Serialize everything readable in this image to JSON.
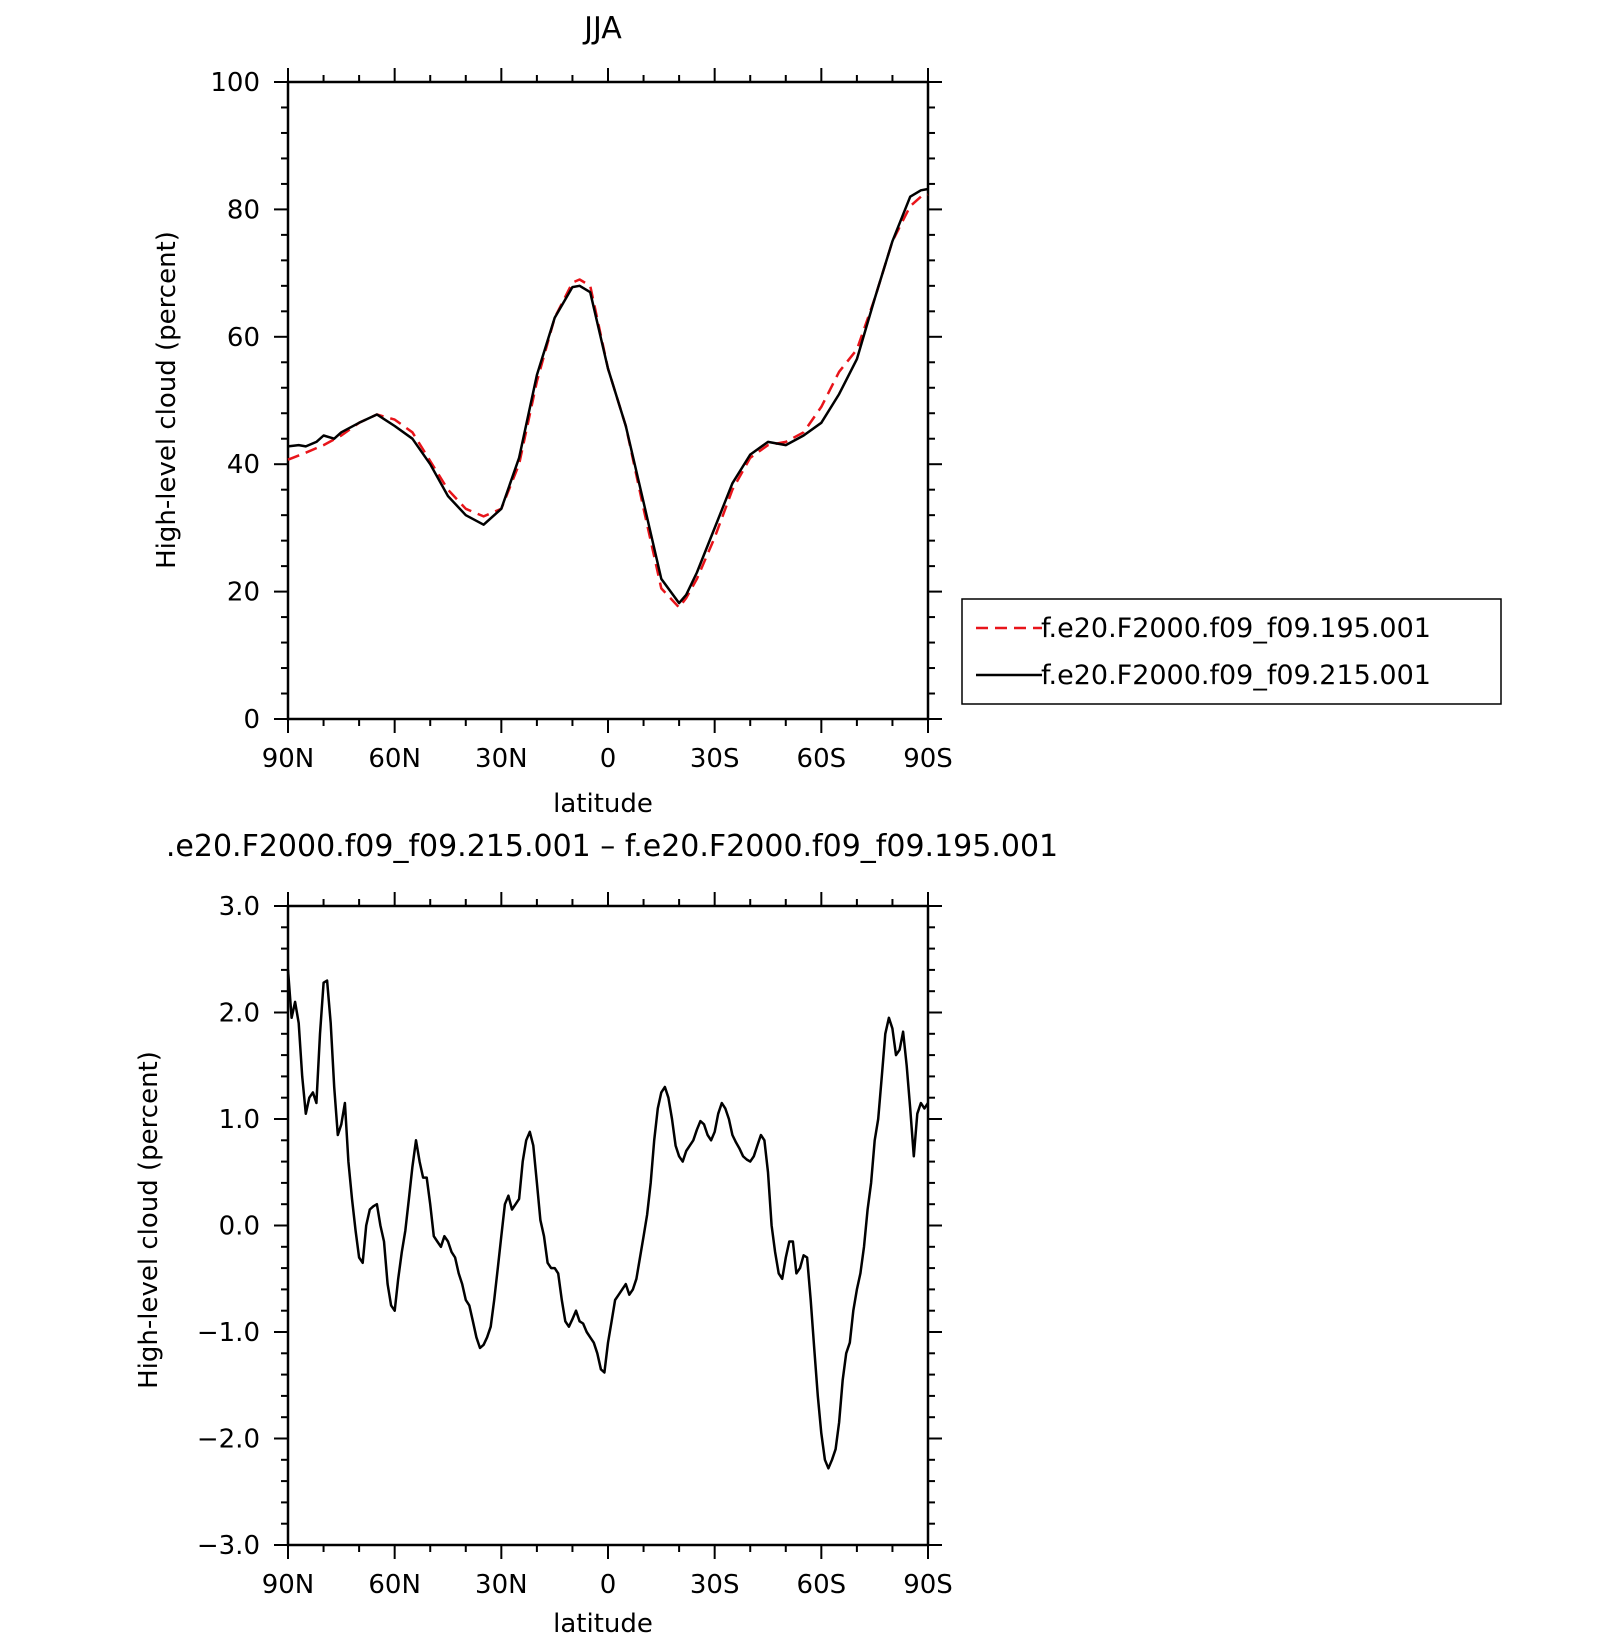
{
  "chart_data": [
    {
      "type": "line",
      "title": "JJA",
      "xlabel": "latitude",
      "ylabel": "High-level cloud (percent)",
      "xlim": [
        -90,
        90
      ],
      "ylim": [
        0,
        100
      ],
      "x_ticks": [
        -90,
        -60,
        -30,
        0,
        30,
        60,
        90
      ],
      "x_tick_labels": [
        "90N",
        "60N",
        "30N",
        "0",
        "30S",
        "60S",
        "90S"
      ],
      "y_ticks": [
        0,
        20,
        40,
        60,
        80,
        100
      ],
      "y_tick_labels": [
        "0",
        "20",
        "40",
        "60",
        "80",
        "100"
      ],
      "legend_position": "right, outside plot",
      "series": [
        {
          "name": "f.e20.F2000.f09_f09.195.001",
          "color": "#e8141a",
          "dash": "dashed",
          "x": [
            -90,
            -85,
            -80,
            -75,
            -70,
            -65,
            -60,
            -55,
            -50,
            -45,
            -40,
            -35,
            -30,
            -25,
            -20,
            -15,
            -10,
            -8,
            -5,
            0,
            5,
            10,
            15,
            20,
            22,
            25,
            30,
            35,
            40,
            45,
            50,
            55,
            60,
            65,
            70,
            75,
            80,
            85,
            88,
            90
          ],
          "y": [
            40.7,
            41.8,
            43.0,
            44.5,
            46.5,
            47.8,
            47.0,
            45.0,
            40.5,
            36.0,
            33.0,
            31.8,
            33.0,
            40.0,
            53.0,
            63.0,
            68.5,
            69.0,
            68.0,
            55.0,
            46.0,
            33.0,
            20.5,
            17.5,
            19.0,
            22.0,
            28.5,
            36.0,
            41.0,
            43.0,
            43.5,
            45.0,
            49.0,
            54.5,
            58.0,
            66.0,
            75.0,
            80.5,
            82.0,
            82.3
          ]
        },
        {
          "name": "f.e20.F2000.f09_f09.215.001",
          "color": "#000000",
          "dash": "solid",
          "x": [
            -90,
            -87,
            -85,
            -82,
            -80,
            -77,
            -75,
            -70,
            -65,
            -60,
            -55,
            -50,
            -45,
            -40,
            -35,
            -30,
            -25,
            -20,
            -15,
            -10,
            -8,
            -5,
            0,
            5,
            10,
            15,
            20,
            22,
            25,
            30,
            35,
            40,
            45,
            50,
            55,
            60,
            65,
            70,
            75,
            80,
            85,
            88,
            90
          ],
          "y": [
            42.8,
            43.0,
            42.8,
            43.5,
            44.5,
            44.0,
            45.0,
            46.5,
            47.8,
            46.0,
            44.0,
            40.0,
            35.0,
            32.0,
            30.5,
            33.0,
            41.0,
            54.0,
            63.0,
            67.8,
            68.0,
            67.0,
            55.0,
            46.0,
            34.0,
            22.0,
            18.2,
            19.5,
            23.0,
            30.0,
            37.0,
            41.5,
            43.5,
            43.0,
            44.5,
            46.5,
            51.0,
            56.5,
            66.0,
            75.0,
            82.0,
            83.0,
            83.2
          ]
        }
      ]
    },
    {
      "type": "line",
      "title": ".e20.F2000.f09_f09.215.001 – f.e20.F2000.f09_f09.195.001",
      "xlabel": "latitude",
      "ylabel": "High-level cloud (percent)",
      "xlim": [
        -90,
        90
      ],
      "ylim": [
        -3.0,
        3.0
      ],
      "x_ticks": [
        -90,
        -60,
        -30,
        0,
        30,
        60,
        90
      ],
      "x_tick_labels": [
        "90N",
        "60N",
        "30N",
        "0",
        "30S",
        "60S",
        "90S"
      ],
      "y_ticks": [
        -3.0,
        -2.0,
        -1.0,
        0.0,
        1.0,
        2.0,
        3.0
      ],
      "y_tick_labels": [
        "−3.0",
        "−2.0",
        "−1.0",
        "0.0",
        "1.0",
        "2.0",
        "3.0"
      ],
      "series": [
        {
          "color": "#000000",
          "dash": "solid",
          "x": [
            -90,
            -89,
            -88,
            -87,
            -86,
            -85,
            -84,
            -83,
            -82,
            -81,
            -80,
            -79,
            -78,
            -77,
            -76,
            -75,
            -74,
            -73,
            -72,
            -71,
            -70,
            -69,
            -68,
            -67,
            -66,
            -65,
            -64,
            -63,
            -62,
            -61,
            -60,
            -59,
            -58,
            -57,
            -56,
            -55,
            -54,
            -53,
            -52,
            -51,
            -50,
            -49,
            -48,
            -47,
            -46,
            -45,
            -44,
            -43,
            -42,
            -41,
            -40,
            -39,
            -38,
            -37,
            -36,
            -35,
            -34,
            -33,
            -32,
            -31,
            -30,
            -29,
            -28,
            -27,
            -26,
            -25,
            -24,
            -23,
            -22,
            -21,
            -20,
            -19,
            -18,
            -17,
            -16,
            -15,
            -14,
            -13,
            -12,
            -11,
            -10,
            -9,
            -8,
            -7,
            -6,
            -5,
            -4,
            -3,
            -2,
            -1,
            0,
            1,
            2,
            3,
            4,
            5,
            6,
            7,
            8,
            9,
            10,
            11,
            12,
            13,
            14,
            15,
            16,
            17,
            18,
            19,
            20,
            21,
            22,
            23,
            24,
            25,
            26,
            27,
            28,
            29,
            30,
            31,
            32,
            33,
            34,
            35,
            36,
            37,
            38,
            39,
            40,
            41,
            42,
            43,
            44,
            45,
            46,
            47,
            48,
            49,
            50,
            51,
            52,
            53,
            54,
            55,
            56,
            57,
            58,
            59,
            60,
            61,
            62,
            63,
            64,
            65,
            66,
            67,
            68,
            69,
            70,
            71,
            72,
            73,
            74,
            75,
            76,
            77,
            78,
            79,
            80,
            81,
            82,
            83,
            84,
            85,
            86,
            87,
            88,
            89,
            90
          ],
          "y": [
            2.4,
            1.95,
            2.1,
            1.9,
            1.4,
            1.05,
            1.2,
            1.25,
            1.15,
            1.8,
            2.28,
            2.3,
            1.9,
            1.3,
            0.85,
            0.95,
            1.15,
            0.6,
            0.25,
            -0.05,
            -0.3,
            -0.35,
            0.0,
            0.15,
            0.18,
            0.2,
            0.0,
            -0.15,
            -0.55,
            -0.75,
            -0.8,
            -0.5,
            -0.25,
            -0.05,
            0.25,
            0.55,
            0.8,
            0.6,
            0.45,
            0.45,
            0.2,
            -0.1,
            -0.15,
            -0.2,
            -0.1,
            -0.15,
            -0.25,
            -0.3,
            -0.45,
            -0.55,
            -0.7,
            -0.75,
            -0.9,
            -1.05,
            -1.15,
            -1.12,
            -1.05,
            -0.95,
            -0.7,
            -0.4,
            -0.1,
            0.2,
            0.28,
            0.15,
            0.2,
            0.25,
            0.6,
            0.8,
            0.88,
            0.75,
            0.4,
            0.05,
            -0.1,
            -0.35,
            -0.4,
            -0.4,
            -0.45,
            -0.7,
            -0.9,
            -0.95,
            -0.88,
            -0.8,
            -0.9,
            -0.92,
            -1.0,
            -1.05,
            -1.1,
            -1.2,
            -1.35,
            -1.38,
            -1.1,
            -0.9,
            -0.7,
            -0.65,
            -0.6,
            -0.55,
            -0.65,
            -0.6,
            -0.5,
            -0.3,
            -0.1,
            0.1,
            0.4,
            0.8,
            1.1,
            1.25,
            1.3,
            1.2,
            1.0,
            0.75,
            0.65,
            0.6,
            0.7,
            0.75,
            0.8,
            0.9,
            0.98,
            0.95,
            0.85,
            0.8,
            0.88,
            1.05,
            1.15,
            1.1,
            1.0,
            0.85,
            0.78,
            0.72,
            0.65,
            0.62,
            0.6,
            0.65,
            0.75,
            0.85,
            0.8,
            0.5,
            0.0,
            -0.25,
            -0.45,
            -0.5,
            -0.3,
            -0.15,
            -0.15,
            -0.45,
            -0.4,
            -0.28,
            -0.3,
            -0.7,
            -1.15,
            -1.6,
            -1.95,
            -2.2,
            -2.28,
            -2.2,
            -2.1,
            -1.85,
            -1.45,
            -1.2,
            -1.1,
            -0.8,
            -0.6,
            -0.45,
            -0.2,
            0.15,
            0.4,
            0.8,
            1.0,
            1.4,
            1.8,
            1.95,
            1.85,
            1.6,
            1.65,
            1.82,
            1.5,
            1.1,
            0.65,
            1.05,
            1.15,
            1.1,
            1.15
          ]
        }
      ]
    }
  ]
}
